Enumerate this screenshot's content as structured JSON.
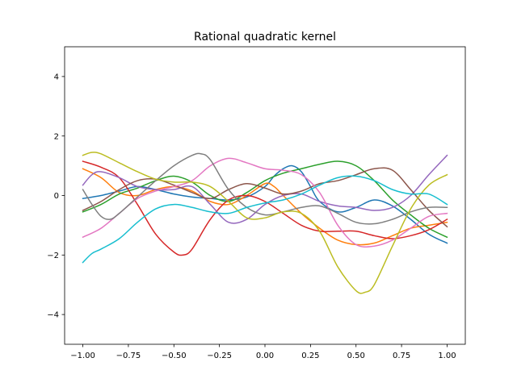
{
  "chart_data": {
    "type": "line",
    "title": "Rational quadratic kernel",
    "xlabel": "",
    "ylabel": "",
    "xlim": [
      -1.1,
      1.1
    ],
    "ylim": [
      -5,
      5
    ],
    "grid": false,
    "xticks": [
      -1.0,
      -0.75,
      -0.5,
      -0.25,
      0.0,
      0.25,
      0.5,
      0.75,
      1.0
    ],
    "xtick_labels": [
      "−1.00",
      "−0.75",
      "−0.50",
      "−0.25",
      "0.00",
      "0.25",
      "0.50",
      "0.75",
      "1.00"
    ],
    "yticks": [
      -4,
      -2,
      0,
      2,
      4
    ],
    "ytick_labels": [
      "−4",
      "−2",
      "0",
      "2",
      "4"
    ],
    "series": [
      {
        "color": "#1f77b4",
        "x": [
          -1.0,
          -0.9,
          -0.8,
          -0.7,
          -0.6,
          -0.5,
          -0.4,
          -0.3,
          -0.2,
          -0.1,
          0.0,
          0.05,
          0.1,
          0.15,
          0.2,
          0.25,
          0.3,
          0.4,
          0.5,
          0.6,
          0.7,
          0.8,
          0.9,
          1.0
        ],
        "y": [
          -0.1,
          0.0,
          0.15,
          0.3,
          0.2,
          0.05,
          -0.05,
          -0.1,
          -0.15,
          -0.05,
          0.3,
          0.65,
          0.9,
          1.0,
          0.8,
          0.3,
          -0.2,
          -0.55,
          -0.4,
          -0.15,
          -0.35,
          -0.8,
          -1.3,
          -1.6
        ]
      },
      {
        "color": "#ff7f0e",
        "x": [
          -1.0,
          -0.9,
          -0.8,
          -0.7,
          -0.6,
          -0.5,
          -0.4,
          -0.3,
          -0.2,
          -0.1,
          0.0,
          0.05,
          0.1,
          0.2,
          0.3,
          0.4,
          0.5,
          0.6,
          0.7,
          0.8,
          0.9,
          1.0
        ],
        "y": [
          0.9,
          0.6,
          0.1,
          0.0,
          0.2,
          0.3,
          0.15,
          -0.2,
          -0.3,
          0.0,
          0.4,
          0.3,
          0.0,
          -0.6,
          -1.1,
          -1.5,
          -1.65,
          -1.6,
          -1.35,
          -1.1,
          -1.0,
          -0.9
        ]
      },
      {
        "color": "#2ca02c",
        "x": [
          -1.0,
          -0.9,
          -0.8,
          -0.7,
          -0.6,
          -0.5,
          -0.4,
          -0.3,
          -0.2,
          -0.1,
          0.0,
          0.1,
          0.2,
          0.3,
          0.4,
          0.5,
          0.6,
          0.7,
          0.8,
          0.9,
          1.0
        ],
        "y": [
          -0.55,
          -0.3,
          0.05,
          0.25,
          0.5,
          0.65,
          0.45,
          0.0,
          -0.2,
          0.1,
          0.5,
          0.75,
          0.9,
          1.05,
          1.15,
          1.0,
          0.5,
          -0.15,
          -0.65,
          -1.1,
          -1.4
        ]
      },
      {
        "color": "#d62728",
        "x": [
          -1.0,
          -0.9,
          -0.8,
          -0.7,
          -0.6,
          -0.5,
          -0.45,
          -0.4,
          -0.3,
          -0.2,
          -0.1,
          0.0,
          0.1,
          0.2,
          0.3,
          0.4,
          0.5,
          0.6,
          0.7,
          0.8,
          0.9,
          1.0
        ],
        "y": [
          1.15,
          0.95,
          0.6,
          -0.3,
          -1.3,
          -1.9,
          -2.0,
          -1.8,
          -0.8,
          -0.15,
          0.0,
          -0.2,
          -0.6,
          -1.0,
          -1.2,
          -1.2,
          -1.2,
          -1.35,
          -1.45,
          -1.35,
          -1.15,
          -0.8
        ]
      },
      {
        "color": "#9467bd",
        "x": [
          -1.0,
          -0.95,
          -0.9,
          -0.8,
          -0.7,
          -0.6,
          -0.5,
          -0.4,
          -0.3,
          -0.2,
          -0.1,
          0.0,
          0.1,
          0.2,
          0.3,
          0.4,
          0.5,
          0.6,
          0.7,
          0.8,
          0.9,
          1.0
        ],
        "y": [
          0.35,
          0.7,
          0.8,
          0.6,
          0.3,
          0.2,
          0.2,
          0.3,
          -0.3,
          -0.9,
          -0.8,
          -0.3,
          0.0,
          0.05,
          -0.2,
          -0.35,
          -0.4,
          -0.5,
          -0.4,
          0.0,
          0.7,
          1.35
        ]
      },
      {
        "color": "#8c564b",
        "x": [
          -1.0,
          -0.9,
          -0.8,
          -0.7,
          -0.6,
          -0.5,
          -0.4,
          -0.3,
          -0.2,
          -0.1,
          0.0,
          0.1,
          0.2,
          0.3,
          0.4,
          0.5,
          0.6,
          0.7,
          0.8,
          0.9,
          1.0
        ],
        "y": [
          -0.5,
          -0.2,
          0.2,
          0.5,
          0.55,
          0.35,
          0.1,
          -0.1,
          0.2,
          0.4,
          0.25,
          0.05,
          0.15,
          0.4,
          0.5,
          0.7,
          0.9,
          0.85,
          0.2,
          -0.5,
          -1.05
        ]
      },
      {
        "color": "#e377c2",
        "x": [
          -1.0,
          -0.9,
          -0.8,
          -0.7,
          -0.6,
          -0.5,
          -0.4,
          -0.3,
          -0.2,
          -0.1,
          0.0,
          0.1,
          0.2,
          0.3,
          0.4,
          0.5,
          0.6,
          0.7,
          0.8,
          0.9,
          1.0
        ],
        "y": [
          -1.4,
          -1.1,
          -0.6,
          -0.1,
          0.15,
          0.3,
          0.5,
          1.0,
          1.25,
          1.1,
          0.9,
          0.85,
          0.7,
          0.1,
          -1.0,
          -1.65,
          -1.7,
          -1.5,
          -1.1,
          -0.7,
          -0.6
        ]
      },
      {
        "color": "#7f7f7f",
        "x": [
          -1.0,
          -0.95,
          -0.9,
          -0.85,
          -0.8,
          -0.7,
          -0.6,
          -0.5,
          -0.4,
          -0.35,
          -0.3,
          -0.2,
          -0.1,
          0.0,
          0.1,
          0.2,
          0.3,
          0.4,
          0.5,
          0.6,
          0.7,
          0.8,
          0.9,
          1.0
        ],
        "y": [
          0.2,
          -0.3,
          -0.7,
          -0.8,
          -0.6,
          -0.05,
          0.5,
          1.0,
          1.35,
          1.4,
          1.2,
          0.2,
          -0.4,
          -0.65,
          -0.55,
          -0.4,
          -0.35,
          -0.6,
          -0.9,
          -0.95,
          -0.8,
          -0.55,
          -0.4,
          -0.4
        ]
      },
      {
        "color": "#bcbd22",
        "x": [
          -1.0,
          -0.95,
          -0.9,
          -0.8,
          -0.7,
          -0.6,
          -0.5,
          -0.4,
          -0.3,
          -0.2,
          -0.1,
          0.0,
          0.1,
          0.2,
          0.3,
          0.4,
          0.5,
          0.55,
          0.6,
          0.7,
          0.8,
          0.9,
          1.0
        ],
        "y": [
          1.35,
          1.45,
          1.4,
          1.1,
          0.8,
          0.55,
          0.45,
          0.45,
          0.3,
          -0.2,
          -0.75,
          -0.75,
          -0.55,
          -0.6,
          -1.2,
          -2.4,
          -3.2,
          -3.25,
          -3.0,
          -1.7,
          -0.45,
          0.35,
          0.7
        ]
      },
      {
        "color": "#17becf",
        "x": [
          -1.0,
          -0.95,
          -0.9,
          -0.8,
          -0.7,
          -0.6,
          -0.5,
          -0.4,
          -0.3,
          -0.2,
          -0.1,
          0.0,
          0.1,
          0.2,
          0.3,
          0.4,
          0.5,
          0.6,
          0.7,
          0.8,
          0.9,
          1.0
        ],
        "y": [
          -2.25,
          -1.95,
          -1.8,
          -1.45,
          -0.9,
          -0.45,
          -0.3,
          -0.4,
          -0.55,
          -0.6,
          -0.4,
          -0.25,
          -0.15,
          0.05,
          0.35,
          0.6,
          0.65,
          0.5,
          0.2,
          0.05,
          0.05,
          -0.3
        ]
      }
    ]
  }
}
